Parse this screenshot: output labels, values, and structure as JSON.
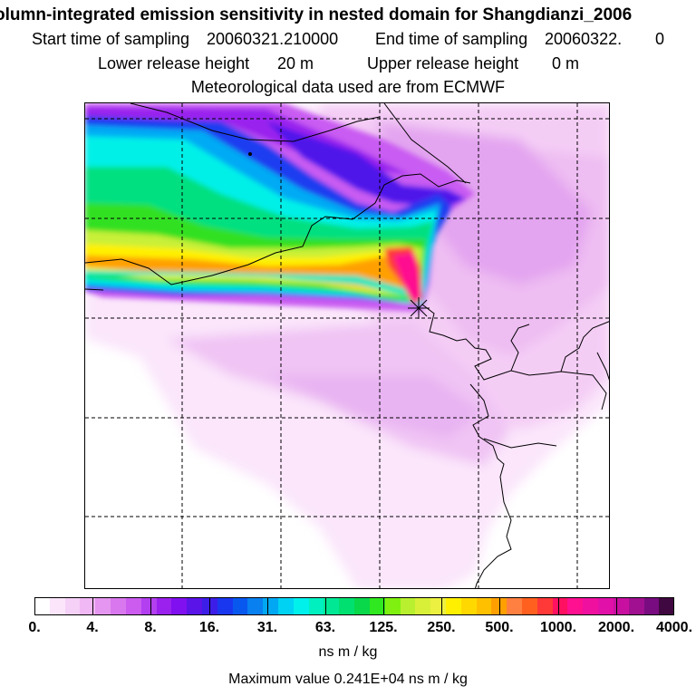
{
  "header": {
    "title": "olumn-integrated emission sensitivity in nested domain for Shangdianzi_2006",
    "start_label": "Start time of sampling",
    "start_value": "20060321.210000",
    "end_label": "End time of sampling",
    "end_value": "20060322.",
    "end_tail": "0",
    "lower_label": "Lower release height",
    "lower_value": "20 m",
    "upper_label": "Upper release height",
    "upper_value": "0 m",
    "met_line": "Meteorological data used are from ECMWF"
  },
  "legend": {
    "labels": [
      "0.",
      "4.",
      "8.",
      "16.",
      "31.",
      "63.",
      "125.",
      "250.",
      "500.",
      "1000.",
      "2000.",
      "4000."
    ],
    "colors": [
      "#ffffff",
      "#fbe5fb",
      "#f5d0f7",
      "#f0b8f4",
      "#e596f0",
      "#d978ee",
      "#cc5cf0",
      "#b23ff0",
      "#9a21ee",
      "#8010f0",
      "#5a14e8",
      "#3c1ee8",
      "#1a37f0",
      "#0858f0",
      "#0880f0",
      "#00a8f4",
      "#00d2f4",
      "#00f0ec",
      "#00f0c0",
      "#00e894",
      "#00e070",
      "#08d84a",
      "#30e820",
      "#80f010",
      "#b8f030",
      "#d8f038",
      "#ecf040",
      "#fff000",
      "#ffd800",
      "#ffc000",
      "#ffa000",
      "#ff8040",
      "#ff6020",
      "#ff3838",
      "#ff1060",
      "#ff1090",
      "#f010a0",
      "#e010a8",
      "#c810a0",
      "#a01090",
      "#780c80",
      "#400840"
    ],
    "unit": "ns m / kg",
    "max_label": "Maximum value  0.241E+04 ns m / kg"
  },
  "map": {
    "plume_colors": [
      "#f6d8f6",
      "#eebdf2",
      "#e096f0",
      "#c95cf2",
      "#9a24ee",
      "#5014ea",
      "#1a3cf0",
      "#00aaf4",
      "#00f0e8",
      "#00e080",
      "#30e020",
      "#c8f038",
      "#fff000",
      "#ffa000",
      "#ff3838",
      "#ff1090"
    ],
    "receptor_icon": "star-marker-icon"
  }
}
